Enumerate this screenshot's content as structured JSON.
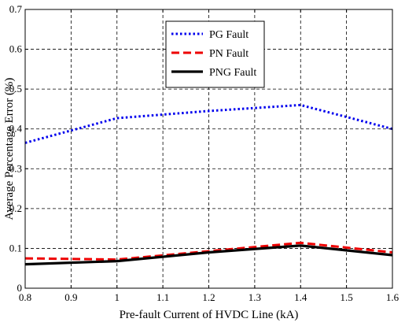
{
  "chart_data": {
    "type": "line",
    "title": "",
    "xlabel": "Pre-fault Current of HVDC Line (kA)",
    "ylabel": "Average Percentage Error (%)",
    "xlim": [
      0.8,
      1.6
    ],
    "ylim": [
      0,
      0.7
    ],
    "xticks": [
      "0.8",
      "0.9",
      "1",
      "1.1",
      "1.2",
      "1.3",
      "1.4",
      "1.5",
      "1.6"
    ],
    "yticks": [
      "0",
      "0.1",
      "0.2",
      "0.3",
      "0.4",
      "0.5",
      "0.6",
      "0.7"
    ],
    "grid": true,
    "legend_position": "top-right",
    "x": [
      0.8,
      1.0,
      1.2,
      1.4,
      1.6
    ],
    "series": [
      {
        "name": "PG Fault",
        "color": "#0000ee",
        "style": "dotted",
        "values": [
          0.365,
          0.427,
          0.445,
          0.46,
          0.4
        ]
      },
      {
        "name": "PN Fault",
        "color": "#ee0000",
        "style": "dashed",
        "values": [
          0.075,
          0.072,
          0.093,
          0.114,
          0.09
        ]
      },
      {
        "name": "PNG Fault",
        "color": "#000000",
        "style": "solid",
        "values": [
          0.06,
          0.068,
          0.09,
          0.107,
          0.083
        ]
      }
    ]
  }
}
